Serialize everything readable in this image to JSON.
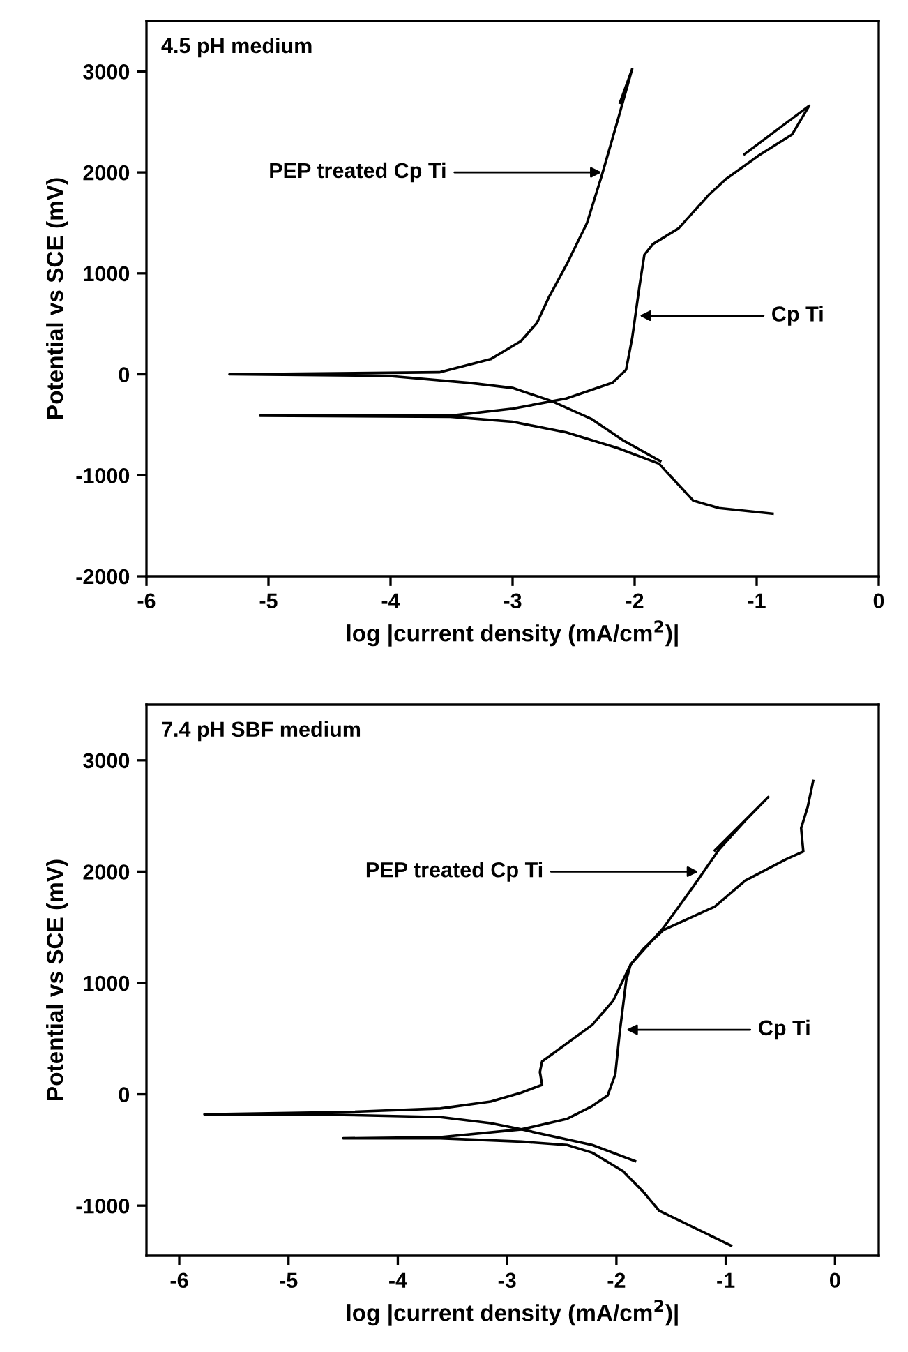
{
  "chart_data": [
    {
      "type": "line",
      "title": "4.5 pH medium",
      "xlabel": "log |current density (mA/cm$^{2}$)|",
      "ylabel": "Potential vs SCE (mV)",
      "xlim": [
        -6,
        0
      ],
      "xticks": [
        -6,
        -5,
        -4,
        -3,
        -2,
        -1,
        0
      ],
      "ylim": [
        -2000,
        3500
      ],
      "yticks": [
        -2000,
        -1000,
        0,
        1000,
        2000,
        3000
      ],
      "grid": false,
      "legend": false,
      "marker": "none",
      "line_style": "solid",
      "series": [
        {
          "color": "#000000",
          "x": [
            -1.79,
            -2.1,
            -2.35,
            -2.68,
            -3.0,
            -3.35,
            -4.02,
            -5.32,
            -3.6,
            -3.18,
            -2.93,
            -2.8,
            -2.7,
            -2.56,
            -2.39,
            -2.27,
            -2.14,
            -2.02,
            -2.12
          ],
          "values": [
            -860,
            -650,
            -445,
            -265,
            -135,
            -85,
            -15,
            0,
            20,
            150,
            330,
            510,
            770,
            1080,
            1500,
            1965,
            2510,
            3025,
            2690
          ]
        },
        {
          "color": "#000000",
          "x": [
            -0.87,
            -1.31,
            -1.52,
            -1.64,
            -1.8,
            -2.14,
            -2.56,
            -3.0,
            -3.51,
            -5.07,
            -3.51,
            -3.0,
            -2.56,
            -2.18,
            -2.07,
            -2.02,
            -1.96,
            -1.92,
            -1.85,
            -1.64,
            -1.39,
            -1.25,
            -0.98,
            -0.71,
            -0.57,
            -1.1
          ],
          "values": [
            -1380,
            -1325,
            -1250,
            -1095,
            -885,
            -730,
            -575,
            -470,
            -420,
            -410,
            -410,
            -340,
            -240,
            -83,
            45,
            360,
            875,
            1185,
            1290,
            1445,
            1780,
            1935,
            2170,
            2375,
            2660,
            2180
          ]
        }
      ],
      "annotations": [
        {
          "text": "PEP treated Cp Ti",
          "x": -2.27,
          "y": 2000
        },
        {
          "text": "Cp Ti",
          "x": -1.96,
          "y": 580
        }
      ]
    },
    {
      "type": "line",
      "title": "7.4 pH SBF medium",
      "xlabel": "log |current density (mA/cm$^{2}$)|",
      "ylabel": "Potential vs SCE (mV)",
      "xlim": [
        -6.3,
        0.4
      ],
      "xticks": [
        -6,
        -5,
        -4,
        -3,
        -2,
        -1,
        0
      ],
      "ylim": [
        -1450,
        3500
      ],
      "yticks": [
        -1000,
        0,
        1000,
        2000,
        3000
      ],
      "grid": false,
      "legend": false,
      "marker": "none",
      "line_style": "solid",
      "series": [
        {
          "color": "#000000",
          "x": [
            -1.83,
            -2.22,
            -2.87,
            -3.15,
            -3.61,
            -4.5,
            -5.77,
            -4.5,
            -3.61,
            -3.15,
            -2.87,
            -2.68,
            -2.7,
            -2.68,
            -2.45,
            -2.22,
            -2.03,
            -1.87,
            -1.57,
            -1.29,
            -1.06,
            -0.82,
            -0.61,
            -1.1
          ],
          "values": [
            -600,
            -455,
            -315,
            -260,
            -205,
            -185,
            -180,
            -160,
            -127,
            -65,
            15,
            85,
            200,
            295,
            460,
            625,
            840,
            1165,
            1495,
            1875,
            2200,
            2460,
            2670,
            2190
          ]
        },
        {
          "color": "#000000",
          "x": [
            -0.95,
            -1.61,
            -1.75,
            -1.94,
            -2.22,
            -2.45,
            -2.87,
            -3.61,
            -4.5,
            -3.61,
            -2.87,
            -2.45,
            -2.22,
            -2.08,
            -2.01,
            -1.97,
            -1.91,
            -1.87,
            -1.75,
            -1.57,
            -1.1,
            -0.82,
            -0.45,
            -0.29,
            -0.31,
            -0.25,
            -0.2
          ],
          "values": [
            -1360,
            -1045,
            -880,
            -690,
            -525,
            -455,
            -425,
            -395,
            -395,
            -385,
            -315,
            -220,
            -105,
            -10,
            180,
            555,
            1025,
            1165,
            1310,
            1475,
            1685,
            1920,
            2110,
            2180,
            2390,
            2580,
            2815
          ]
        }
      ],
      "annotations": [
        {
          "text": "PEP treated Cp Ti",
          "x": -1.25,
          "y": 2000
        },
        {
          "text": "Cp Ti",
          "x": -1.91,
          "y": 580
        }
      ]
    }
  ]
}
